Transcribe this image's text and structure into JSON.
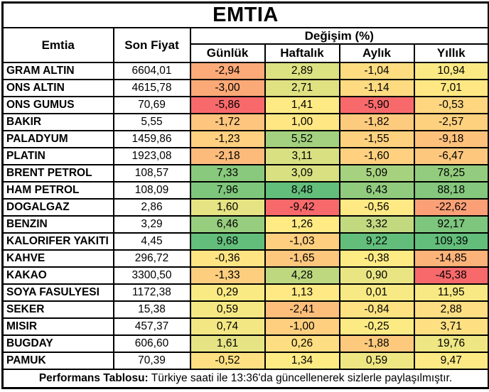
{
  "title": "EMTIA",
  "header": {
    "commodity": "Emtia",
    "last_price": "Son Fiyat",
    "change_group": "Değişim (%)",
    "periods": [
      "Günlük",
      "Haftalık",
      "Aylık",
      "Yıllık"
    ]
  },
  "colors": {
    "border": "#000000",
    "background": "#ffffff",
    "scale_min_red": "#F8696B",
    "scale_mid_yellow": "#FFEB84",
    "scale_max_green": "#63BE7B"
  },
  "rows": [
    {
      "name": "GRAM ALTIN",
      "price": "6604,01",
      "values": [
        "-2,94",
        "2,89",
        "-1,04",
        "10,94"
      ],
      "colors": [
        "#FCAA78",
        "#DCE182",
        "#FEDD81",
        "#FBEA84"
      ]
    },
    {
      "name": "ONS ALTIN",
      "price": "4615,78",
      "values": [
        "-3,00",
        "2,71",
        "-1,14",
        "7,01"
      ],
      "colors": [
        "#FBA977",
        "#E0E282",
        "#FEDB81",
        "#FFE883"
      ]
    },
    {
      "name": "ONS GUMUS",
      "price": "70,69",
      "values": [
        "-5,86",
        "1,41",
        "-5,90",
        "-0,53"
      ],
      "colors": [
        "#F8696B",
        "#FDEA84",
        "#F8696B",
        "#FED680"
      ]
    },
    {
      "name": "BAKIR",
      "price": "5,55",
      "values": [
        "-1,72",
        "1,00",
        "-1,82",
        "-2,57"
      ],
      "colors": [
        "#FDC57D",
        "#FFE783",
        "#FDCB7E",
        "#FED17F"
      ]
    },
    {
      "name": "PALADYUM",
      "price": "1459,86",
      "values": [
        "-1,23",
        "5,52",
        "-1,55",
        "-9,18"
      ],
      "colors": [
        "#FED07F",
        "#A3D17F",
        "#FED17F",
        "#FDC17C"
      ]
    },
    {
      "name": "PLATIN",
      "price": "1923,08",
      "values": [
        "-2,18",
        "3,11",
        "-1,60",
        "-6,47"
      ],
      "colors": [
        "#FCBB7B",
        "#D8E082",
        "#FED07F",
        "#FDC77D"
      ]
    },
    {
      "name": "BRENT PETROL",
      "price": "108,57",
      "values": [
        "7,33",
        "3,09",
        "5,09",
        "78,25"
      ],
      "colors": [
        "#89C97D",
        "#D8E082",
        "#A6D17F",
        "#93CC7E"
      ]
    },
    {
      "name": "HAM PETROL",
      "price": "108,09",
      "values": [
        "7,96",
        "8,48",
        "6,43",
        "88,18"
      ],
      "colors": [
        "#7FC67D",
        "#63BE7B",
        "#90CB7E",
        "#84C77D"
      ]
    },
    {
      "name": "DOGALGAZ",
      "price": "2,86",
      "values": [
        "1,60",
        "-9,42",
        "-0,56",
        "-22,62"
      ],
      "colors": [
        "#E5E383",
        "#F8696B",
        "#FFE984",
        "#FBA076"
      ]
    },
    {
      "name": "BENZIN",
      "price": "3,29",
      "values": [
        "6,46",
        "1,26",
        "3,32",
        "92,17"
      ],
      "colors": [
        "#97CD7E",
        "#FFEA84",
        "#C2D980",
        "#7EC67D"
      ]
    },
    {
      "name": "KALORIFER YAKITI",
      "price": "4,45",
      "values": [
        "9,68",
        "-1,03",
        "9,22",
        "109,39"
      ],
      "colors": [
        "#63BE7B",
        "#FDCF7F",
        "#63BE7B",
        "#63BE7B"
      ]
    },
    {
      "name": "KAHVE",
      "price": "296,72",
      "values": [
        "-0,36",
        "-1,65",
        "-0,38",
        "-14,85"
      ],
      "colors": [
        "#FFE483",
        "#FDC77D",
        "#FEEB84",
        "#FCB379"
      ]
    },
    {
      "name": "KAKAO",
      "price": "3300,50",
      "values": [
        "-1,33",
        "4,28",
        "0,90",
        "-45,38"
      ],
      "colors": [
        "#FDCE7E",
        "#BED880",
        "#E9E583",
        "#F8696B"
      ]
    },
    {
      "name": "SOYA FASULYESI",
      "price": "1172,38",
      "values": [
        "0,29",
        "1,13",
        "0,01",
        "11,95"
      ],
      "colors": [
        "#FAEA84",
        "#FFE984",
        "#F7E984",
        "#F9E984"
      ]
    },
    {
      "name": "SEKER",
      "price": "15,38",
      "values": [
        "0,59",
        "-2,41",
        "-0,84",
        "2,88"
      ],
      "colors": [
        "#F5E883",
        "#FDBE7B",
        "#FEE282",
        "#FEDE82"
      ]
    },
    {
      "name": "MISIR",
      "price": "457,37",
      "values": [
        "0,74",
        "-1,00",
        "-0,25",
        "3,71"
      ],
      "colors": [
        "#F3E783",
        "#FECF7F",
        "#FCEA84",
        "#FEE082"
      ]
    },
    {
      "name": "BUGDAY",
      "price": "606,60",
      "values": [
        "1,61",
        "0,26",
        "-1,88",
        "19,76"
      ],
      "colors": [
        "#E5E383",
        "#FEDE82",
        "#FDC97D",
        "#EDE683"
      ]
    },
    {
      "name": "PAMUK",
      "price": "70,39",
      "values": [
        "-0,52",
        "1,34",
        "0,59",
        "9,47"
      ],
      "colors": [
        "#FEE082",
        "#FEEB84",
        "#EEE683",
        "#FDEA84"
      ]
    }
  ],
  "footer": {
    "bold": "Performans Tablosu:",
    "text": " Türkiye saati ile 13:36'da güncellenerek sizlerle paylaşılmıştır."
  },
  "chart_data": {
    "type": "table",
    "title": "EMTIA",
    "columns": [
      "Emtia",
      "Son Fiyat",
      "Günlük",
      "Haftalık",
      "Aylık",
      "Yıllık"
    ],
    "change_unit": "Değişim (%)",
    "conditional_format": "red-yellow-green 3-color scale per column (min=red #F8696B, median=yellow #FFEB84, max=green #63BE7B)",
    "rows": [
      [
        "GRAM ALTIN",
        6604.01,
        -2.94,
        2.89,
        -1.04,
        10.94
      ],
      [
        "ONS ALTIN",
        4615.78,
        -3.0,
        2.71,
        -1.14,
        7.01
      ],
      [
        "ONS GUMUS",
        70.69,
        -5.86,
        1.41,
        -5.9,
        -0.53
      ],
      [
        "BAKIR",
        5.55,
        -1.72,
        1.0,
        -1.82,
        -2.57
      ],
      [
        "PALADYUM",
        1459.86,
        -1.23,
        5.52,
        -1.55,
        -9.18
      ],
      [
        "PLATIN",
        1923.08,
        -2.18,
        3.11,
        -1.6,
        -6.47
      ],
      [
        "BRENT PETROL",
        108.57,
        7.33,
        3.09,
        5.09,
        78.25
      ],
      [
        "HAM PETROL",
        108.09,
        7.96,
        8.48,
        6.43,
        88.18
      ],
      [
        "DOGALGAZ",
        2.86,
        1.6,
        -9.42,
        -0.56,
        -22.62
      ],
      [
        "BENZIN",
        3.29,
        6.46,
        1.26,
        3.32,
        92.17
      ],
      [
        "KALORIFER YAKITI",
        4.45,
        9.68,
        -1.03,
        9.22,
        109.39
      ],
      [
        "KAHVE",
        296.72,
        -0.36,
        -1.65,
        -0.38,
        -14.85
      ],
      [
        "KAKAO",
        3300.5,
        -1.33,
        4.28,
        0.9,
        -45.38
      ],
      [
        "SOYA FASULYESI",
        1172.38,
        0.29,
        1.13,
        0.01,
        11.95
      ],
      [
        "SEKER",
        15.38,
        0.59,
        -2.41,
        -0.84,
        2.88
      ],
      [
        "MISIR",
        457.37,
        0.74,
        -1.0,
        -0.25,
        3.71
      ],
      [
        "BUGDAY",
        606.6,
        1.61,
        0.26,
        -1.88,
        19.76
      ],
      [
        "PAMUK",
        70.39,
        -0.52,
        1.34,
        0.59,
        9.47
      ]
    ],
    "footer_note": "Performans Tablosu: Türkiye saati ile 13:36'da güncellenerek sizlerle paylaşılmıştır."
  }
}
